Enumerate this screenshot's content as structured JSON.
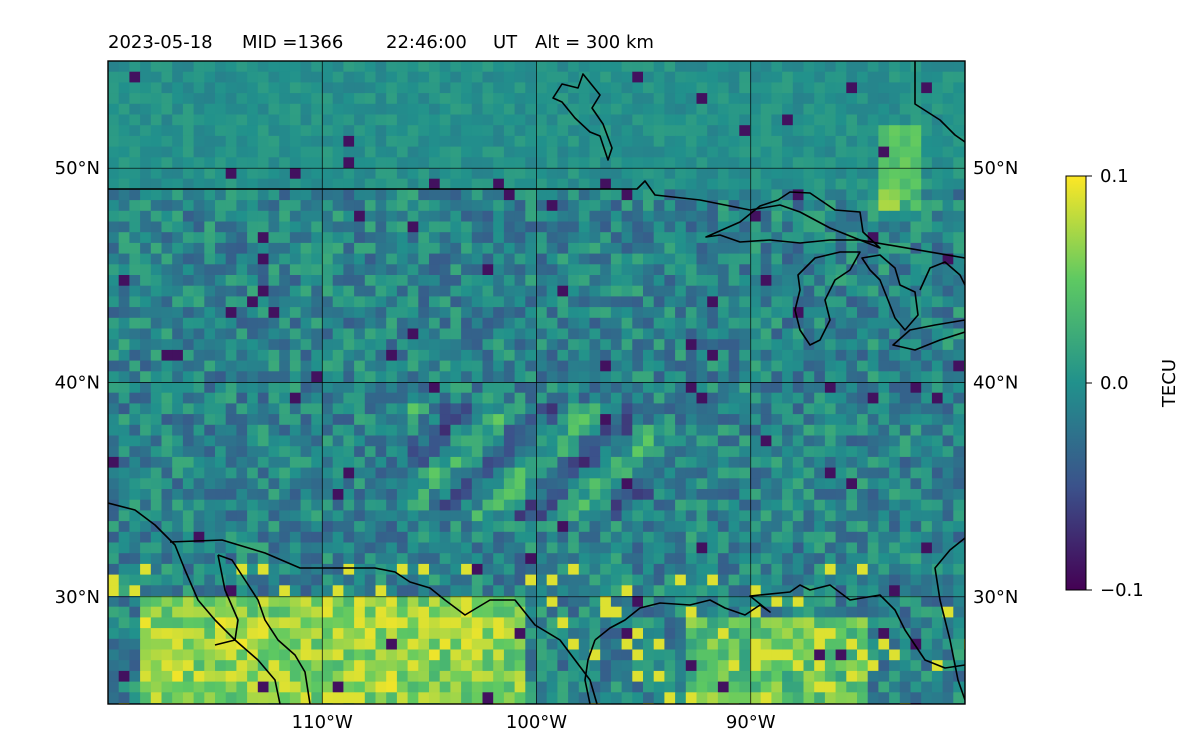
{
  "title": {
    "date": "2023-05-18",
    "mid": "MID =1366",
    "time": "22:46:00",
    "ut": "UT",
    "alt": "Alt = 300 km"
  },
  "map": {
    "lon_range": [
      -120,
      -80
    ],
    "lat_range": [
      25,
      55
    ],
    "lon_ticks": [
      {
        "value": -110,
        "label": "110°W"
      },
      {
        "value": -100,
        "label": "100°W"
      },
      {
        "value": -90,
        "label": "90°W"
      }
    ],
    "lat_ticks": [
      {
        "value": 30,
        "label": "30°N"
      },
      {
        "value": 40,
        "label": "40°N"
      },
      {
        "value": 50,
        "label": "50°N"
      }
    ],
    "grid": true,
    "coastlines": true,
    "borders": true,
    "field": "TEC perturbation (viridis)"
  },
  "colorbar": {
    "label": "TECU",
    "min": -0.1,
    "max": 0.1,
    "ticks": [
      {
        "value": 0.1,
        "label": "0.1"
      },
      {
        "value": 0.0,
        "label": "0.0"
      },
      {
        "value": -0.1,
        "label": "−0.1"
      }
    ],
    "colormap": [
      "#440154",
      "#3b528b",
      "#21918c",
      "#5ec962",
      "#fde725"
    ]
  }
}
